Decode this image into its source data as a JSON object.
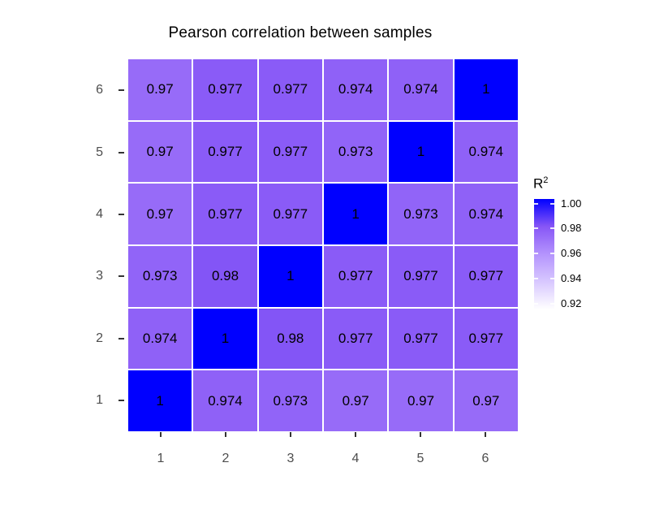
{
  "title": "Pearson correlation between samples",
  "colors": {
    "background": "#ffffff",
    "axis_text": "#4d4d4d",
    "tick_mark": "#333333",
    "cell_text": "#000000",
    "diagonal_blue": "#0000ff"
  },
  "chart_data": {
    "type": "heatmap",
    "title": "Pearson correlation between samples",
    "x_categories": [
      "1",
      "2",
      "3",
      "4",
      "5",
      "6"
    ],
    "y_categories_top_to_bottom": [
      "6",
      "5",
      "4",
      "3",
      "2",
      "1"
    ],
    "matrix_rows_top_to_bottom": [
      [
        0.97,
        0.977,
        0.977,
        0.974,
        0.974,
        1
      ],
      [
        0.97,
        0.977,
        0.977,
        0.973,
        1,
        0.974
      ],
      [
        0.97,
        0.977,
        0.977,
        1,
        0.973,
        0.974
      ],
      [
        0.973,
        0.98,
        1,
        0.977,
        0.977,
        0.977
      ],
      [
        0.974,
        1,
        0.98,
        0.977,
        0.977,
        0.977
      ],
      [
        1,
        0.974,
        0.973,
        0.97,
        0.97,
        0.97
      ]
    ],
    "value_colors": {
      "1": "#0000ff",
      "0.98": "#8355f6",
      "0.977": "#8a5bf7",
      "0.974": "#8f61f7",
      "0.973": "#9164f8",
      "0.97": "#976bf8"
    },
    "legend": {
      "title_base": "R",
      "title_exponent": "2",
      "tick_labels": [
        "1.00",
        "0.98",
        "0.96",
        "0.94",
        "0.92"
      ],
      "range": [
        0.92,
        1.0
      ],
      "gradient_low": "#ffffff",
      "gradient_high": "#0000ff",
      "gradient_stops_bottom_to_top": [
        "#ffffff",
        "#d8c8ff",
        "#b494fd",
        "#8756f6",
        "#0000ff"
      ],
      "position": "right"
    },
    "axes": {
      "x_tick_labels": [
        "1",
        "2",
        "3",
        "4",
        "5",
        "6"
      ],
      "y_tick_labels_top_to_bottom": [
        "6",
        "5",
        "4",
        "3",
        "2",
        "1"
      ]
    },
    "grid": false,
    "cell_label_color": "#000000"
  }
}
